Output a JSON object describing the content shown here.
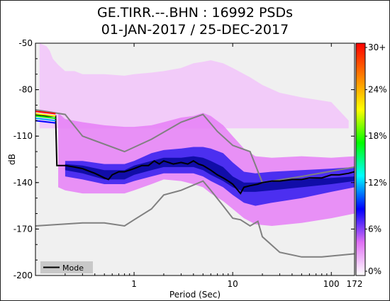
{
  "chart_data": {
    "type": "heatmap",
    "title_line1": "GE.TIRR.--.BHN : 16992 PSDs",
    "title_line2": "01-JAN-2017 / 25-DEC-2017",
    "xlabel": "Period (Sec)",
    "ylabel": "dB",
    "x_scale": "log",
    "xlim": [
      0.1,
      172
    ],
    "ylim": [
      -200,
      -50
    ],
    "x_ticks": [
      {
        "value": 1,
        "label": "1"
      },
      {
        "value": 10,
        "label": "10"
      },
      {
        "value": 100,
        "label": "100"
      },
      {
        "value": 172,
        "label": "172"
      }
    ],
    "y_ticks": [
      {
        "value": -50,
        "label": "-50"
      },
      {
        "value": -80,
        "label": "-80"
      },
      {
        "value": -110,
        "label": "-110"
      },
      {
        "value": -140,
        "label": "-140"
      },
      {
        "value": -170,
        "label": "-170"
      },
      {
        "value": -200,
        "label": "-200"
      }
    ],
    "colorbar": {
      "ticks": [
        "0%",
        "6%",
        "12%",
        "18%",
        "24%",
        "30+"
      ],
      "colors": [
        "#ffffff",
        "#e070f5",
        "#0000ff",
        "#00ffff",
        "#00ff00",
        "#ffff00",
        "#ff8000",
        "#ff0000"
      ]
    },
    "legend": {
      "label": "Mode",
      "placement": "bottom-left"
    },
    "mode_line": {
      "x": [
        0.1,
        0.13,
        0.16,
        0.165,
        0.2,
        0.25,
        0.3,
        0.4,
        0.5,
        0.55,
        0.6,
        0.7,
        0.8,
        1.0,
        1.2,
        1.4,
        1.6,
        1.8,
        2.0,
        2.5,
        3.0,
        3.5,
        4.0,
        4.5,
        5.0,
        6.0,
        7.0,
        8.0,
        9.0,
        10,
        12,
        13,
        15,
        18,
        20,
        25,
        30,
        40,
        50,
        60,
        80,
        100,
        120,
        150,
        172
      ],
      "y": [
        -96,
        -97,
        -97,
        -129,
        -129,
        -130,
        -131,
        -134,
        -137,
        -138,
        -135,
        -133,
        -133,
        -131,
        -129,
        -129,
        -126,
        -128,
        -126,
        -128,
        -127,
        -128,
        -126,
        -128,
        -129,
        -132,
        -135,
        -137,
        -139,
        -141,
        -147,
        -143,
        -142,
        -141,
        -140,
        -139,
        -139,
        -138,
        -138,
        -137,
        -137,
        -135,
        -135,
        -134,
        -133
      ]
    },
    "nhnm": {
      "x": [
        0.1,
        0.2,
        0.3,
        0.8,
        1.5,
        3.0,
        5.0,
        7.0,
        10,
        15,
        20,
        50,
        172
      ],
      "y": [
        -93,
        -96,
        -110,
        -120,
        -112,
        -101,
        -96,
        -107,
        -116,
        -120,
        -140,
        -136,
        -130
      ]
    },
    "nlnm": {
      "x": [
        0.1,
        0.3,
        0.5,
        0.8,
        1.0,
        1.5,
        2.0,
        3.0,
        5.0,
        6.0,
        8.0,
        10,
        12,
        15,
        18,
        20,
        30,
        50,
        80,
        172
      ],
      "y": [
        -168,
        -166,
        -166,
        -168,
        -164,
        -157,
        -148,
        -145,
        -139,
        -145,
        -155,
        -163,
        -164,
        -168,
        -165,
        -175,
        -185,
        -188,
        -188,
        -186
      ]
    },
    "psd_density": [
      {
        "level": 1,
        "x": [
          0.17,
          0.2,
          0.3,
          0.5,
          0.8,
          1.0,
          1.5,
          2.0,
          3.0,
          4.0,
          5.0,
          6.0,
          8.0,
          10,
          13,
          17,
          25,
          50,
          100,
          172
        ],
        "upper": [
          -95,
          -99,
          -101,
          -103,
          -104,
          -104,
          -103,
          -101,
          -98,
          -97,
          -95,
          -97,
          -103,
          -110,
          -118,
          -123,
          -124,
          -123,
          -124,
          -123
        ],
        "lower": [
          -143,
          -145,
          -147,
          -147,
          -147,
          -145,
          -141,
          -138,
          -139,
          -141,
          -143,
          -147,
          -152,
          -157,
          -163,
          -167,
          -168,
          -166,
          -163,
          -160
        ]
      },
      {
        "level": 2,
        "x": [
          0.2,
          0.3,
          0.5,
          0.8,
          1.0,
          1.5,
          2.0,
          3.0,
          4.0,
          5.0,
          6.0,
          8.0,
          10,
          13,
          17,
          25,
          50,
          100,
          172
        ],
        "upper": [
          -126,
          -126,
          -128,
          -128,
          -126,
          -121,
          -119,
          -118,
          -117,
          -117,
          -118,
          -121,
          -127,
          -133,
          -134,
          -133,
          -132,
          -131,
          -130
        ],
        "lower": [
          -136,
          -138,
          -141,
          -141,
          -139,
          -136,
          -134,
          -134,
          -134,
          -136,
          -139,
          -143,
          -148,
          -153,
          -155,
          -153,
          -150,
          -146,
          -143
        ]
      },
      {
        "level": 3,
        "x": [
          0.2,
          0.3,
          0.5,
          0.8,
          1.0,
          1.5,
          2.0,
          3.0,
          4.0,
          5.0,
          6.0,
          8.0,
          10,
          13,
          17,
          25,
          50,
          100,
          172
        ],
        "upper": [
          -128,
          -129,
          -132,
          -132,
          -129,
          -126,
          -124,
          -124,
          -123,
          -124,
          -126,
          -130,
          -136,
          -140,
          -140,
          -139,
          -138,
          -137,
          -136
        ],
        "lower": [
          -132,
          -134,
          -138,
          -138,
          -135,
          -132,
          -130,
          -130,
          -130,
          -132,
          -135,
          -139,
          -143,
          -146,
          -146,
          -145,
          -143,
          -141,
          -139
        ]
      }
    ],
    "outliers": {
      "x": [
        0.11,
        0.13,
        0.14,
        0.15,
        0.17,
        0.2,
        0.25,
        0.3,
        0.5,
        0.8,
        1.0,
        1.5,
        2.0,
        3.0,
        4.0,
        5.0,
        6.0,
        8.0,
        10,
        15,
        20,
        30,
        50,
        100,
        150
      ],
      "y": [
        -50,
        -52,
        -55,
        -60,
        -64,
        -68,
        -68,
        -70,
        -70,
        -71,
        -70,
        -69,
        -68,
        -66,
        -63,
        -62,
        -61,
        -63,
        -66,
        -72,
        -77,
        -82,
        -85,
        -88,
        -100
      ]
    }
  }
}
